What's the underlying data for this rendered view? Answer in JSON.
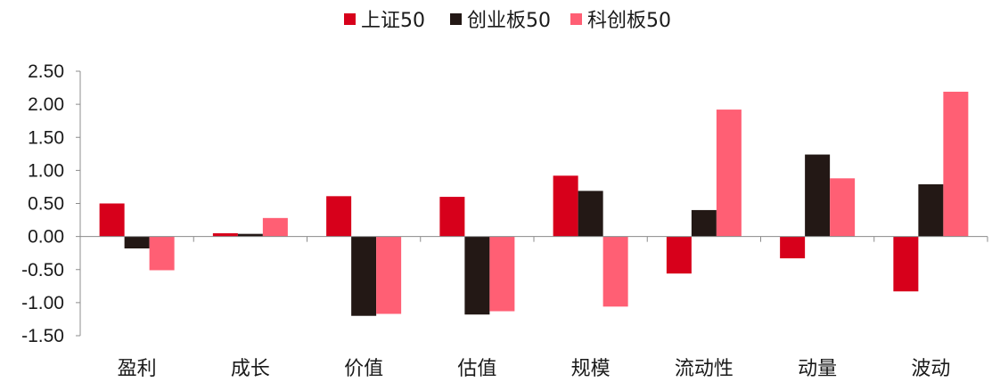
{
  "chart_data": {
    "type": "bar",
    "categories": [
      "盈利",
      "成长",
      "价值",
      "估值",
      "规模",
      "流动性",
      "动量",
      "波动"
    ],
    "series": [
      {
        "name": "上证50",
        "color": "#d7001b",
        "values": [
          0.5,
          0.05,
          0.61,
          0.6,
          0.92,
          -0.56,
          -0.33,
          -0.83
        ]
      },
      {
        "name": "创业板50",
        "color": "#231815",
        "values": [
          -0.18,
          0.04,
          -1.2,
          -1.18,
          0.69,
          0.4,
          1.24,
          0.79
        ]
      },
      {
        "name": "科创板50",
        "color": "#ff5f74",
        "values": [
          -0.51,
          0.28,
          -1.17,
          -1.13,
          -1.06,
          1.92,
          0.88,
          2.19
        ]
      }
    ],
    "ylim": [
      -1.5,
      2.5
    ],
    "yticks": [
      "2.50",
      "2.00",
      "1.50",
      "1.00",
      "0.50",
      "0.00",
      "-0.50",
      "-1.00",
      "-1.50"
    ],
    "legend_position": "top-center",
    "grid": false
  }
}
